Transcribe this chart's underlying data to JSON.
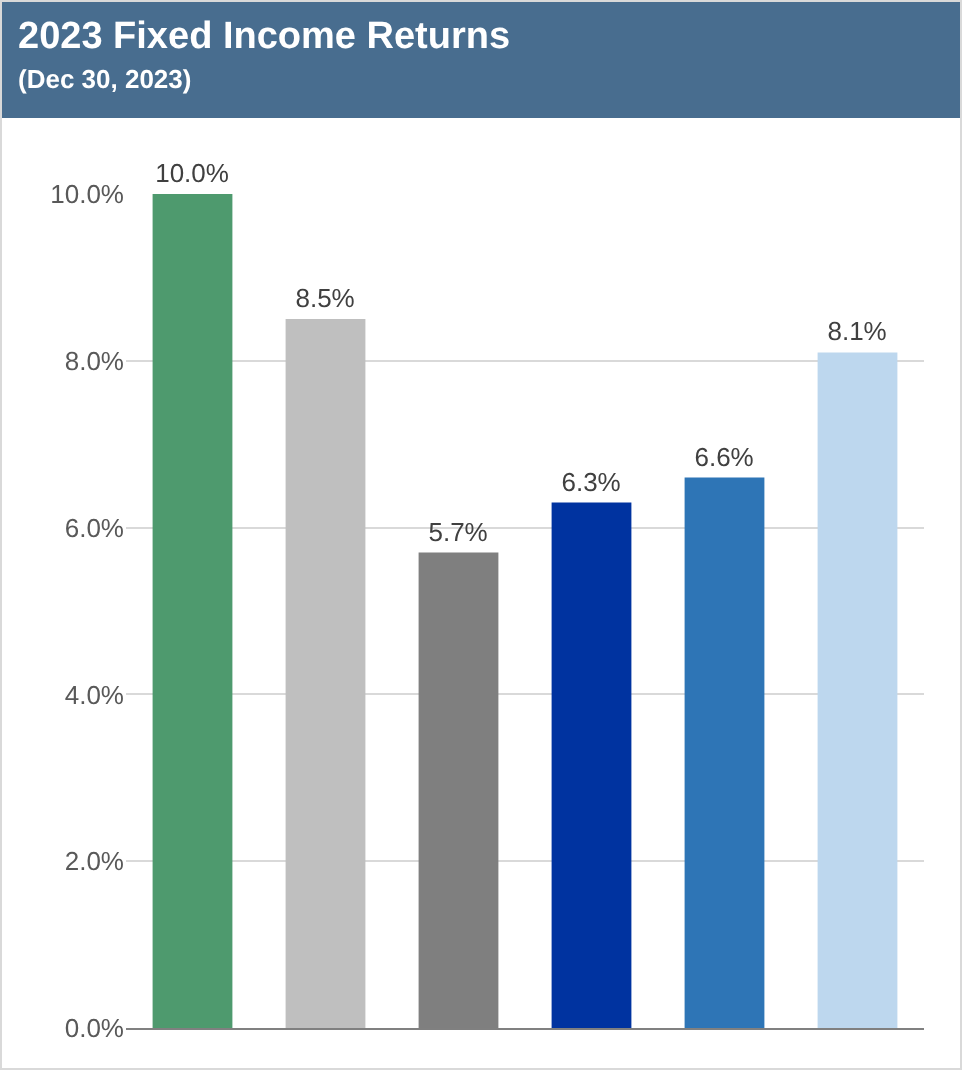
{
  "chart_data": {
    "type": "bar",
    "title": "2023 Fixed Income Returns",
    "subtitle": "(Dec 30, 2023)",
    "categories": [
      null,
      null,
      null,
      null,
      null,
      null
    ],
    "values": [
      10.0,
      8.5,
      5.7,
      6.3,
      6.6,
      8.1
    ],
    "colors": [
      "#4e9a6e",
      "#bfbfbf",
      "#7f7f7f",
      "#0033a0",
      "#2e75b6",
      "#bdd7ee"
    ],
    "value_labels": [
      "10.0%",
      "8.5%",
      "5.7%",
      "6.3%",
      "6.6%",
      "8.1%"
    ],
    "ylim": [
      0,
      10
    ],
    "yticks": [
      {
        "value": 0,
        "label": "0.0%"
      },
      {
        "value": 2,
        "label": "2.0%"
      },
      {
        "value": 4,
        "label": "4.0%"
      },
      {
        "value": 6,
        "label": "6.0%"
      },
      {
        "value": 8,
        "label": "8.0%"
      },
      {
        "value": 10,
        "label": "10.0%"
      }
    ],
    "grid": "y"
  }
}
